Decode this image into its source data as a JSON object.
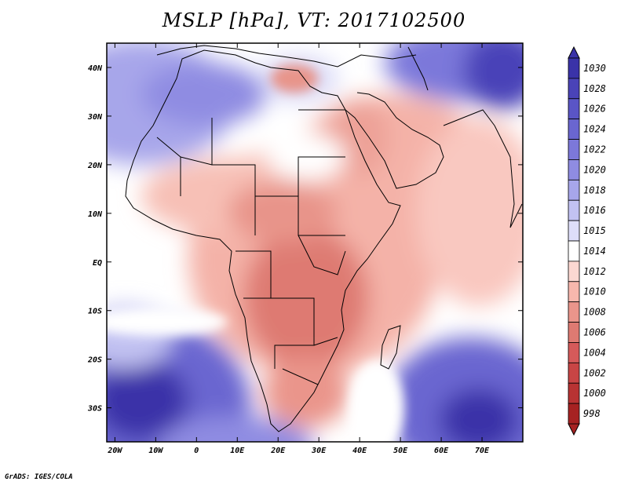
{
  "title": "MSLP [hPa], VT: 2017102500",
  "credit": "GrADS: IGES/COLA",
  "map": {
    "region": "Africa and Arabian Peninsula",
    "lon_labels": [
      "20W",
      "10W",
      "0",
      "10E",
      "20E",
      "30E",
      "40E",
      "50E",
      "60E",
      "70E"
    ],
    "lat_labels": [
      "40N",
      "30N",
      "20N",
      "10N",
      "EQ",
      "10S",
      "20S",
      "30S"
    ],
    "lon_values": [
      -20,
      -10,
      0,
      10,
      20,
      30,
      40,
      50,
      60,
      70
    ],
    "lat_values": [
      40,
      30,
      20,
      10,
      0,
      -10,
      -20,
      -30
    ],
    "lon_range": [
      -22,
      80
    ],
    "lat_range": [
      -37,
      45
    ]
  },
  "colorbar": {
    "labels": [
      "1030",
      "1028",
      "1026",
      "1024",
      "1022",
      "1020",
      "1018",
      "1016",
      "1015",
      "1014",
      "1012",
      "1010",
      "1008",
      "1006",
      "1004",
      "1002",
      "1000",
      "998"
    ],
    "colors": [
      "#3a33a8",
      "#4a43b8",
      "#5a55c6",
      "#6a66d0",
      "#7c78da",
      "#8f8ce2",
      "#a7a6ea",
      "#c2c2f2",
      "#dedef9",
      "#ffffff",
      "#fcd8d2",
      "#f7b7ad",
      "#ea958b",
      "#de7a72",
      "#d55a5a",
      "#c84545",
      "#b83333",
      "#a62222"
    ]
  },
  "field_colors": {
    "ocean_high": "#4a43b8",
    "mid_high": "#8f8ce2",
    "neutral": "#ffffff",
    "low": "#f7b7ad",
    "lower": "#e88d82",
    "lowest": "#d97066"
  }
}
